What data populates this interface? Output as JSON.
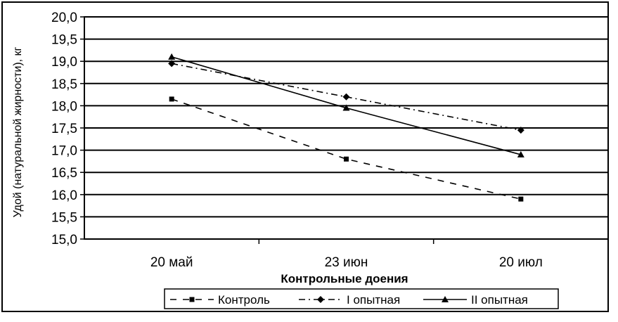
{
  "chart_data": {
    "type": "line",
    "xlabel": "Контрольные доения",
    "ylabel": "Удой (натуральной жирности), кг",
    "categories": [
      "20 май",
      "23 июн",
      "20 июл"
    ],
    "ylim": [
      15.0,
      20.0
    ],
    "y_ticks": [
      "15,0",
      "15,5",
      "16,0",
      "16,5",
      "17,0",
      "17,5",
      "18,0",
      "18,5",
      "19,0",
      "19,5",
      "20,0"
    ],
    "grid": true,
    "legend_position": "bottom",
    "series": [
      {
        "name": "Контроль",
        "values": [
          18.15,
          16.8,
          15.9
        ],
        "style": "dashed",
        "marker": "square"
      },
      {
        "name": "I опытная",
        "values": [
          18.95,
          18.2,
          17.45
        ],
        "style": "dash-dot",
        "marker": "diamond"
      },
      {
        "name": "II опытная",
        "values": [
          19.1,
          17.95,
          16.9
        ],
        "style": "solid",
        "marker": "triangle"
      }
    ],
    "colors": {
      "line": "#000000",
      "background": "#ffffff",
      "grid": "#000000"
    }
  }
}
